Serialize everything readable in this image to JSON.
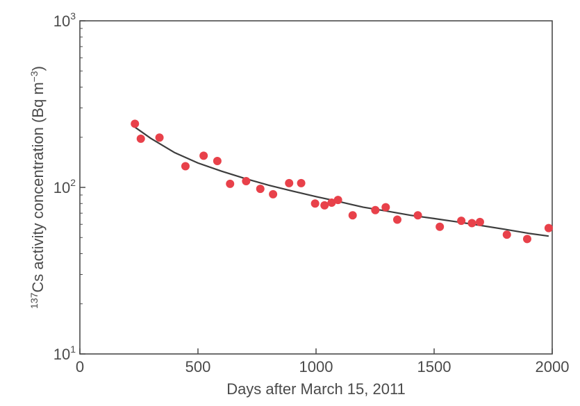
{
  "chart_data": {
    "type": "scatter",
    "xlabel": "Days after March 15, 2011",
    "ylabel": {
      "prefix_sup": "137",
      "main": "Cs activity concentration (Bq m",
      "unit_sup": "−3",
      "suffix": ")"
    },
    "xlim": [
      0,
      2000
    ],
    "ylim": [
      10,
      1000
    ],
    "yscale": "log",
    "grid": false,
    "x_ticks": [
      0,
      500,
      1000,
      1500,
      2000
    ],
    "x_tick_labels": [
      "0",
      "500",
      "1000",
      "1500",
      "2000"
    ],
    "y_ticks": [
      {
        "value": 10,
        "base": "10",
        "exp": "1"
      },
      {
        "value": 100,
        "base": "10",
        "exp": "2"
      },
      {
        "value": 1000,
        "base": "10",
        "exp": "3"
      }
    ],
    "colors": {
      "points": "#e8414a",
      "fit": "#3d3d3d",
      "axes": "#4a4a4a"
    },
    "series": [
      {
        "kind": "scatter",
        "points": [
          {
            "x": 233,
            "y": 241
          },
          {
            "x": 258,
            "y": 196
          },
          {
            "x": 337,
            "y": 199
          },
          {
            "x": 447,
            "y": 134
          },
          {
            "x": 524,
            "y": 155
          },
          {
            "x": 582,
            "y": 144
          },
          {
            "x": 636,
            "y": 105
          },
          {
            "x": 704,
            "y": 109
          },
          {
            "x": 764,
            "y": 98
          },
          {
            "x": 818,
            "y": 91
          },
          {
            "x": 886,
            "y": 106
          },
          {
            "x": 937,
            "y": 106
          },
          {
            "x": 996,
            "y": 80
          },
          {
            "x": 1036,
            "y": 78
          },
          {
            "x": 1066,
            "y": 81
          },
          {
            "x": 1093,
            "y": 84
          },
          {
            "x": 1155,
            "y": 68
          },
          {
            "x": 1251,
            "y": 73
          },
          {
            "x": 1295,
            "y": 76
          },
          {
            "x": 1344,
            "y": 64
          },
          {
            "x": 1431,
            "y": 68
          },
          {
            "x": 1524,
            "y": 58
          },
          {
            "x": 1615,
            "y": 63
          },
          {
            "x": 1660,
            "y": 61
          },
          {
            "x": 1694,
            "y": 62
          },
          {
            "x": 1808,
            "y": 52
          },
          {
            "x": 1894,
            "y": 49
          },
          {
            "x": 1985,
            "y": 57
          }
        ]
      },
      {
        "kind": "line",
        "points": [
          {
            "x": 233,
            "y": 230
          },
          {
            "x": 300,
            "y": 197
          },
          {
            "x": 400,
            "y": 162
          },
          {
            "x": 500,
            "y": 140
          },
          {
            "x": 600,
            "y": 125
          },
          {
            "x": 700,
            "y": 113
          },
          {
            "x": 800,
            "y": 103
          },
          {
            "x": 900,
            "y": 95
          },
          {
            "x": 1000,
            "y": 88
          },
          {
            "x": 1100,
            "y": 82
          },
          {
            "x": 1200,
            "y": 76
          },
          {
            "x": 1300,
            "y": 72
          },
          {
            "x": 1400,
            "y": 68
          },
          {
            "x": 1500,
            "y": 65
          },
          {
            "x": 1600,
            "y": 62
          },
          {
            "x": 1700,
            "y": 59
          },
          {
            "x": 1800,
            "y": 56
          },
          {
            "x": 1900,
            "y": 53
          },
          {
            "x": 1985,
            "y": 51
          }
        ]
      }
    ]
  }
}
